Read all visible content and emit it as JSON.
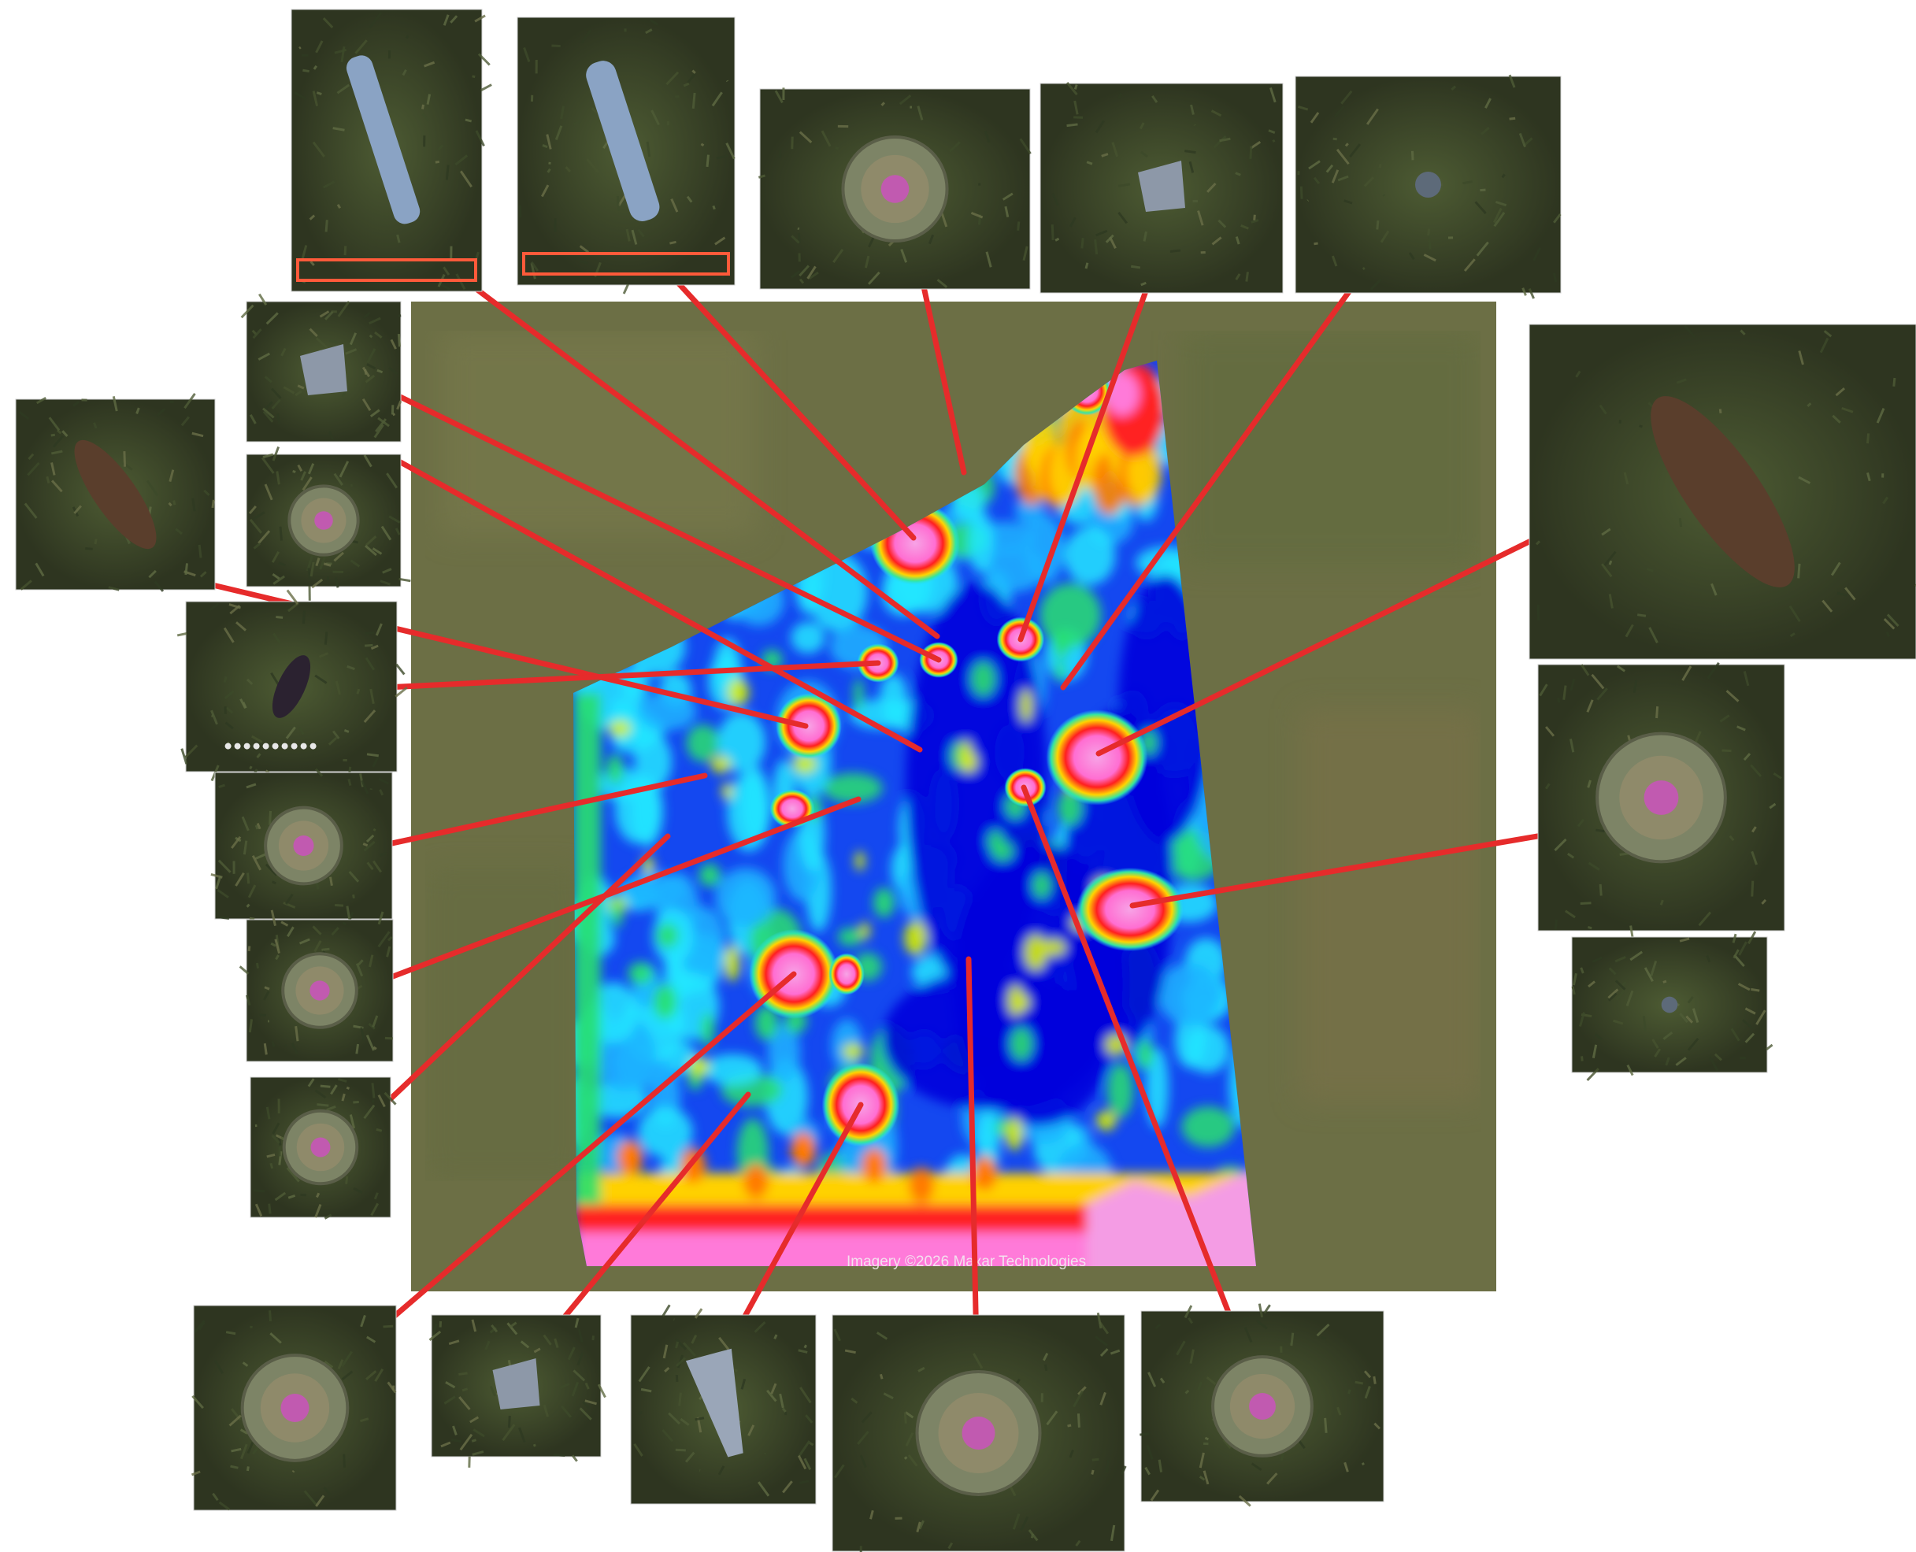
{
  "map": {
    "imagery_credit": "Imagery ©2026 Maxar Technologies",
    "ground_color": "#6e7046",
    "leader_color": "#e62b2b"
  },
  "heatmap": {
    "colorscale": [
      "#0000dc",
      "#1f5cff",
      "#1eb4ff",
      "#25e6ff",
      "#29e06f",
      "#d7f000",
      "#ffd100",
      "#ff7a00",
      "#ff2020",
      "#ff7ad9",
      "#f49ce4"
    ]
  },
  "photo_callouts": [
    {
      "id": "p1",
      "object": "rocket-tube",
      "icon": "tube-icon"
    },
    {
      "id": "p2",
      "object": "mortar-tube",
      "icon": "tube-icon"
    },
    {
      "id": "p3",
      "object": "anti-tank-mine",
      "icon": "disc-mine-icon"
    },
    {
      "id": "p4",
      "object": "fragment",
      "icon": "fragment-icon"
    },
    {
      "id": "p5",
      "object": "small-item",
      "icon": "small-item-icon"
    },
    {
      "id": "p6",
      "object": "green-fragment",
      "icon": "fragment-icon"
    },
    {
      "id": "p7",
      "object": "small-mine",
      "icon": "disc-mine-icon"
    },
    {
      "id": "p8",
      "object": "artillery-shell",
      "icon": "shell-icon"
    },
    {
      "id": "p9",
      "object": "grenade",
      "icon": "grenade-icon"
    },
    {
      "id": "p10",
      "object": "small-mine",
      "icon": "disc-mine-icon"
    },
    {
      "id": "p11",
      "object": "small-mine",
      "icon": "disc-mine-icon"
    },
    {
      "id": "p12",
      "object": "small-mine",
      "icon": "disc-mine-icon"
    },
    {
      "id": "p13",
      "object": "large-shell",
      "icon": "shell-icon"
    },
    {
      "id": "p14",
      "object": "anti-tank-mine",
      "icon": "disc-mine-icon"
    },
    {
      "id": "p15",
      "object": "small-item",
      "icon": "small-item-icon"
    },
    {
      "id": "p16",
      "object": "anti-tank-mine",
      "icon": "disc-mine-icon"
    },
    {
      "id": "p17",
      "object": "fragment",
      "icon": "fragment-icon"
    },
    {
      "id": "p18",
      "object": "mortar-round",
      "icon": "mortar-icon"
    },
    {
      "id": "p19",
      "object": "anti-tank-mine",
      "icon": "disc-mine-icon"
    },
    {
      "id": "p20",
      "object": "small-mine",
      "icon": "disc-mine-icon"
    }
  ]
}
